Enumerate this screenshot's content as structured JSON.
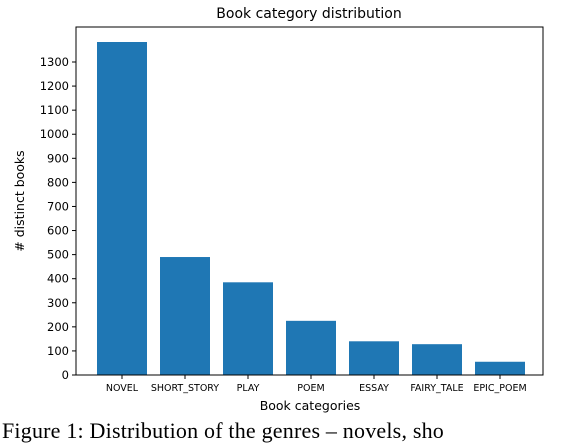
{
  "chart_data": {
    "type": "bar",
    "title": "Book category distribution",
    "xlabel": "Book categories",
    "ylabel": "# distinct books",
    "categories": [
      "NOVEL",
      "SHORT_STORY",
      "PLAY",
      "POEM",
      "ESSAY",
      "FAIRY_TALE",
      "EPIC_POEM"
    ],
    "values": [
      1385,
      490,
      385,
      225,
      140,
      128,
      55
    ],
    "ylim": [
      0,
      1380
    ],
    "yticks": [
      0,
      100,
      200,
      300,
      400,
      500,
      600,
      700,
      800,
      900,
      1000,
      1100,
      1200,
      1300
    ],
    "bar_color": "#1f77b4",
    "grid": false
  },
  "caption": "Figure 1:  Distribution of the genres – novels, sho"
}
